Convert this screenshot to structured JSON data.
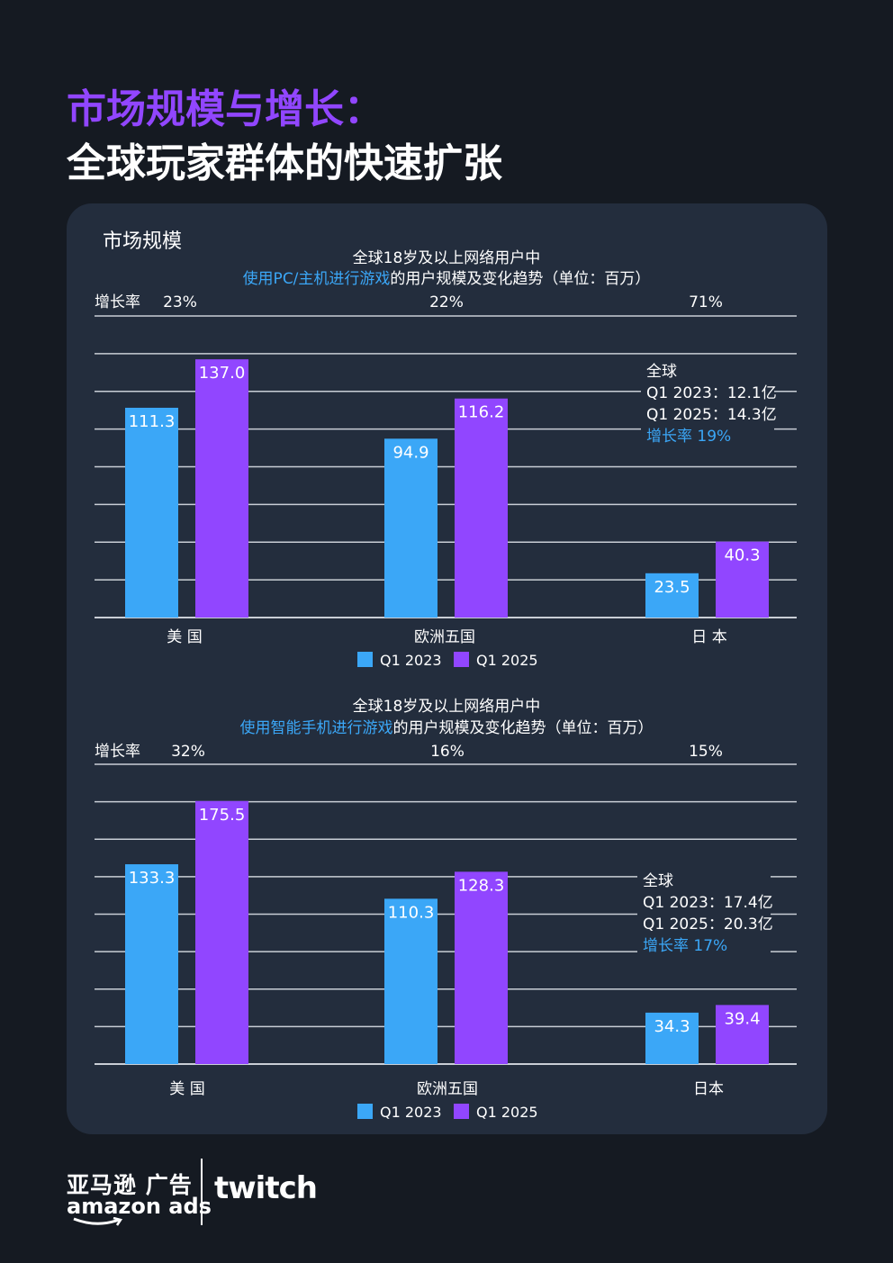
{
  "header": {
    "title_line1": "市场规模与增长：",
    "title_line2": "全球玩家群体的快速扩张"
  },
  "card": {
    "label": "市场规模"
  },
  "colors": {
    "q1_2023": "#3ba7f7",
    "q1_2025": "#9146ff",
    "highlight_text": "#3ba7f7",
    "background": "#151a22",
    "card": "#232d3d"
  },
  "chart_data": [
    {
      "type": "bar",
      "title_line1": "全球18岁及以上网络用户中",
      "title_highlight": "使用PC/主机进行游戏",
      "title_rest": "的用户规模及变化趋势（单位：百万）",
      "growth_label": "增长率",
      "categories": [
        "美 国",
        "欧洲五国",
        "日 本"
      ],
      "growth_rates": [
        "23%",
        "22%",
        "71%"
      ],
      "series": [
        {
          "name": "Q1 2023",
          "values": [
            111.3,
            94.9,
            23.5
          ]
        },
        {
          "name": "Q1 2025",
          "values": [
            137.0,
            116.2,
            40.3
          ]
        }
      ],
      "value_labels": [
        [
          "111.3",
          "94.9",
          "23.5"
        ],
        [
          "137.0",
          "116.2",
          "40.3"
        ]
      ],
      "ylim": [
        0,
        160
      ],
      "legend": "bottom-center",
      "annotation": {
        "line1": "全球",
        "line2": "Q1 2023：12.1亿",
        "line3": "Q1 2025：14.3亿",
        "growth_label": "增长率",
        "growth_value": "19%"
      }
    },
    {
      "type": "bar",
      "title_line1": "全球18岁及以上网络用户中",
      "title_highlight": "使用智能手机进行游戏",
      "title_rest": "的用户规模及变化趋势（单位：百万）",
      "growth_label": "增长率",
      "categories": [
        "美 国",
        "欧洲五国",
        "日本"
      ],
      "growth_rates": [
        "32%",
        "16%",
        "15%"
      ],
      "series": [
        {
          "name": "Q1 2023",
          "values": [
            133.3,
            110.3,
            34.3
          ]
        },
        {
          "name": "Q1 2025",
          "values": [
            175.5,
            128.3,
            39.4
          ]
        }
      ],
      "value_labels": [
        [
          "133.3",
          "110.3",
          "34.3"
        ],
        [
          "175.5",
          "128.3",
          "39.4"
        ]
      ],
      "ylim": [
        0,
        200
      ],
      "legend": "bottom-center",
      "annotation": {
        "line1": "全球",
        "line2": "Q1 2023：17.4亿",
        "line3": "Q1 2025：20.3亿",
        "growth_label": "增长率",
        "growth_value": "17%"
      }
    }
  ],
  "footer": {
    "brand_cn": "亚马逊 广告",
    "brand_en": "amazon ads",
    "partner": "twitch"
  }
}
